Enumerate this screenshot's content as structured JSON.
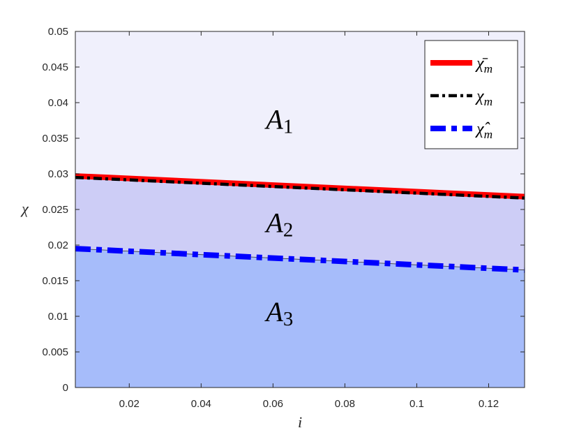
{
  "chart_data": {
    "type": "area",
    "title": "",
    "xlabel": "i",
    "ylabel": "χ",
    "xlim": [
      0.005,
      0.13
    ],
    "ylim": [
      0,
      0.05
    ],
    "xticks": [
      0.02,
      0.04,
      0.06,
      0.08,
      0.1,
      0.12
    ],
    "xtick_labels": [
      "0.02",
      "0.04",
      "0.06",
      "0.08",
      "0.1",
      "0.12"
    ],
    "yticks": [
      0,
      0.005,
      0.01,
      0.015,
      0.02,
      0.025,
      0.03,
      0.035,
      0.04,
      0.045,
      0.05
    ],
    "ytick_labels": [
      "0",
      "0.005",
      "0.01",
      "0.015",
      "0.02",
      "0.025",
      "0.03",
      "0.035",
      "0.04",
      "0.045",
      "0.05"
    ],
    "grid": false,
    "legend_position": "top-right",
    "series": [
      {
        "key": "chi_bar_m",
        "name_main": "χ̄",
        "name_sub": "m",
        "style": "solid",
        "color": "#ff0000",
        "x": [
          0.005,
          0.13
        ],
        "y": [
          0.0297,
          0.0268
        ]
      },
      {
        "key": "chi_m",
        "name_main": "χ",
        "name_sub": "m",
        "style": "dash-dot",
        "color": "#000000",
        "x": [
          0.005,
          0.13
        ],
        "y": [
          0.0295,
          0.0266
        ]
      },
      {
        "key": "chi_hat_m",
        "name_main": "χ̂",
        "name_sub": "m",
        "style": "dash-dot",
        "color": "#0000ff",
        "x": [
          0.005,
          0.13
        ],
        "y": [
          0.0195,
          0.0165
        ]
      }
    ],
    "regions": [
      {
        "key": "A1",
        "label_main": "A",
        "label_sub": "1",
        "color": "#f0f0fc",
        "label_at": [
          0.0635,
          0.0375
        ]
      },
      {
        "key": "A2",
        "label_main": "A",
        "label_sub": "2",
        "color": "#cdcdf6",
        "label_at": [
          0.0635,
          0.023
        ]
      },
      {
        "key": "A3",
        "label_main": "A",
        "label_sub": "3",
        "color": "#a6bcfa",
        "label_at": [
          0.0635,
          0.0105
        ]
      }
    ]
  }
}
